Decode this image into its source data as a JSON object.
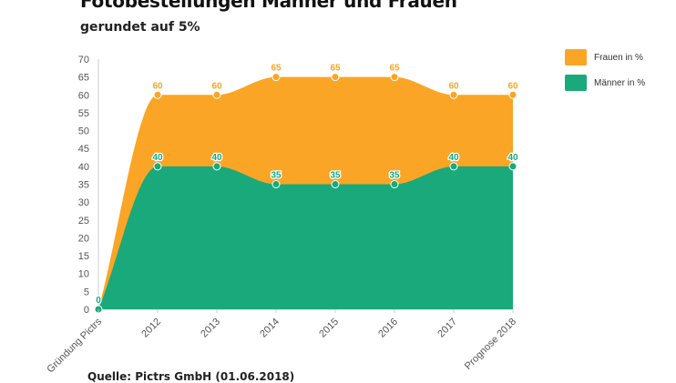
{
  "header": {
    "title": "Fotobestellungen Männer und Frauen",
    "subtitle": "gerundet auf 5%"
  },
  "footer": {
    "source": "Quelle: Pictrs GmbH (01.06.2018)"
  },
  "colors": {
    "frauen": "#FAA526",
    "maenner": "#19A97B"
  },
  "chart_data": {
    "type": "area",
    "title": "Fotobestellungen Männer und Frauen",
    "subtitle": "gerundet auf 5%",
    "categories": [
      "Gründung Pictrs",
      "2012",
      "2013",
      "2014",
      "2015",
      "2016",
      "2017",
      "Prognose 2018"
    ],
    "series": [
      {
        "name": "Frauen in %",
        "values": [
          0,
          60,
          60,
          65,
          65,
          65,
          60,
          60
        ],
        "color": "#FAA526"
      },
      {
        "name": "Männer in %",
        "values": [
          0,
          40,
          40,
          35,
          35,
          35,
          40,
          40
        ],
        "color": "#19A97B"
      }
    ],
    "ylim": [
      0,
      70
    ],
    "yticks": [
      0,
      5,
      10,
      15,
      20,
      25,
      30,
      35,
      40,
      45,
      50,
      55,
      60,
      65,
      70
    ],
    "xlabel": "",
    "ylabel": "",
    "grid": false,
    "legend_position": "top-right",
    "data_labels": true
  }
}
